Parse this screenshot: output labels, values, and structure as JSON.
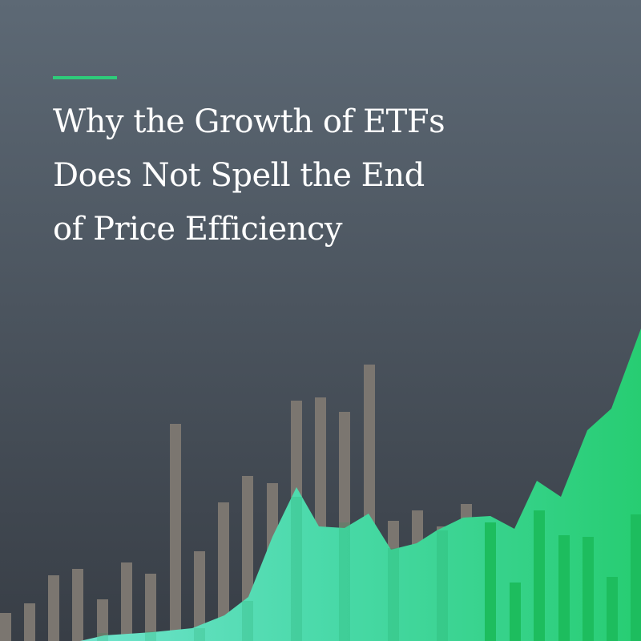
{
  "title": {
    "lines": [
      "Why the Growth of ETFs",
      "Does Not Spell the End",
      "of Price Efficiency"
    ]
  }
}
